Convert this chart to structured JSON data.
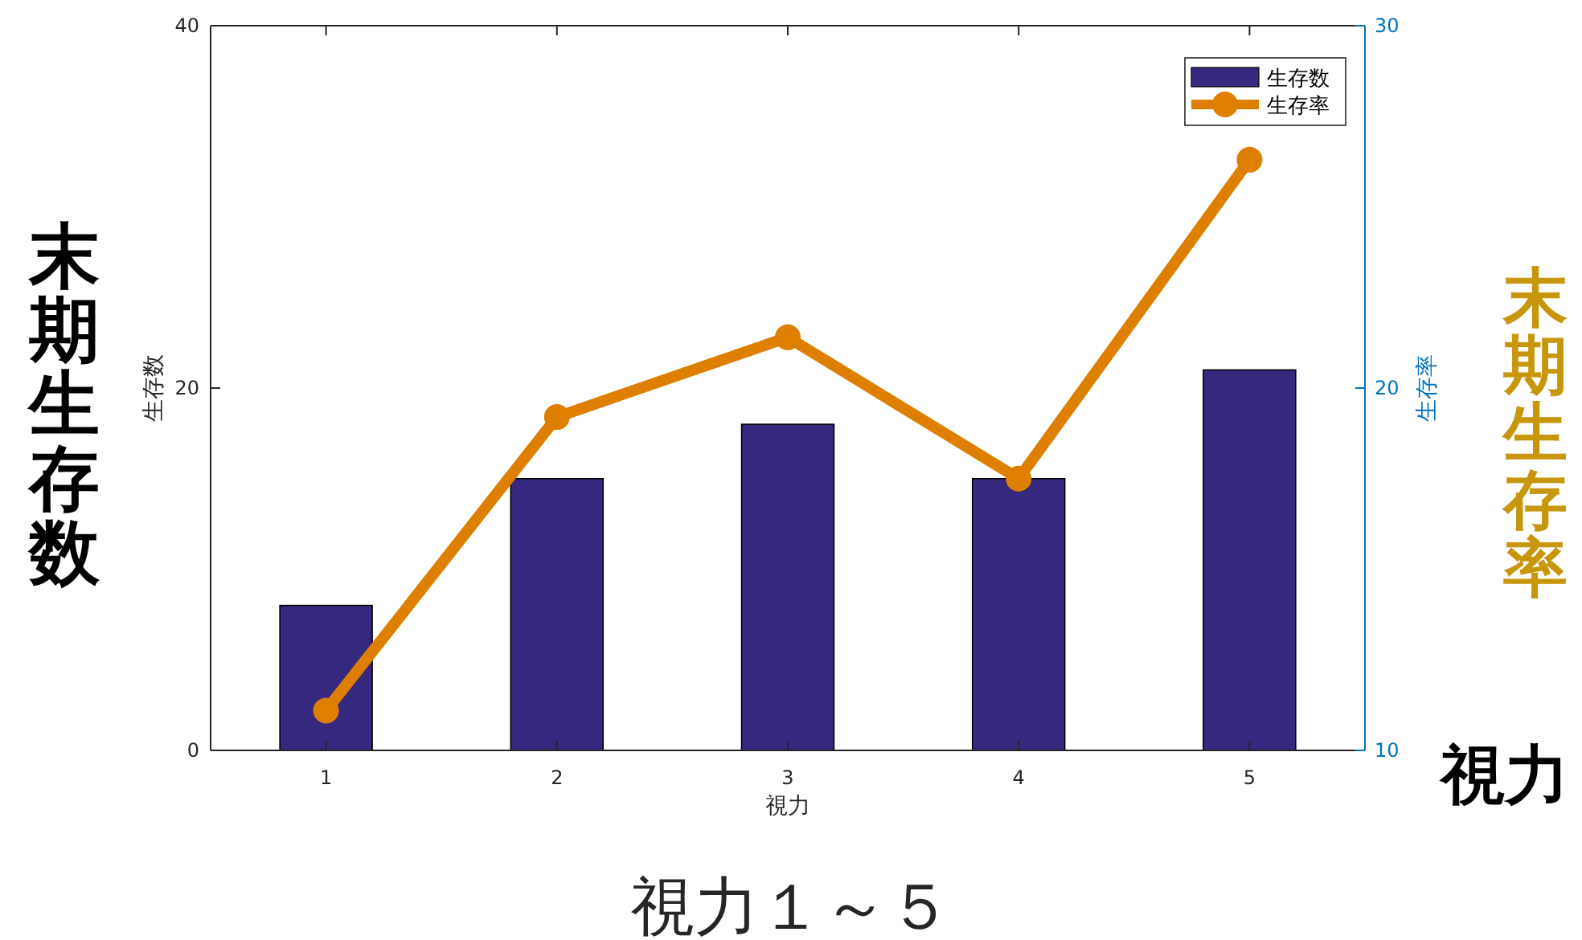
{
  "chart_data": {
    "type": "bar",
    "xlabel": "視力",
    "ylabel": "生存数",
    "y2label": "生存率",
    "categories": [
      "1",
      "2",
      "3",
      "4",
      "5"
    ],
    "series": [
      {
        "name": "生存数",
        "color": "#35297f",
        "values": [
          8,
          15,
          18,
          15,
          21
        ]
      },
      {
        "name": "生存率",
        "type": "line",
        "axis": "y2",
        "color": "#df7f00",
        "marker": "circle",
        "values": [
          11.1,
          19.2,
          21.4,
          17.5,
          26.3
        ]
      }
    ],
    "ylim": [
      0,
      40
    ],
    "yticks": [
      0,
      20,
      40
    ],
    "y2lim": [
      10,
      30
    ],
    "y2ticks": [
      10,
      20,
      30
    ],
    "legend": "top right",
    "grid": false,
    "annotations": [
      "末期生存数",
      "末期生存率",
      "視力",
      "視力１～５"
    ]
  }
}
